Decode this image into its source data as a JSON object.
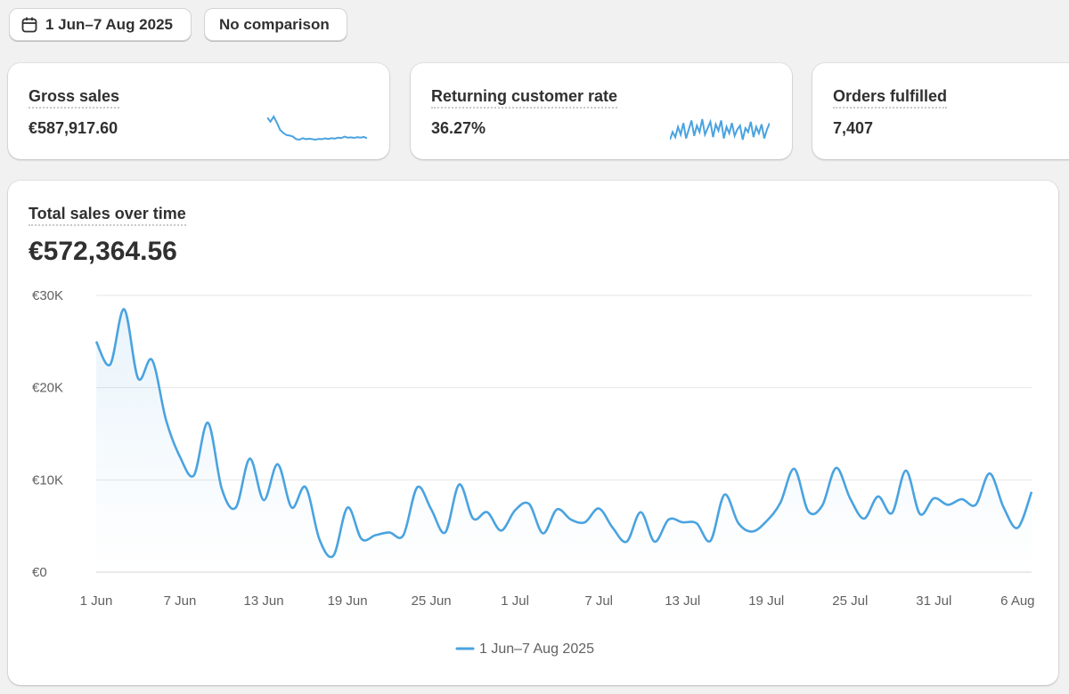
{
  "toolbar": {
    "date_range": "1 Jun–7 Aug 2025",
    "comparison": "No comparison"
  },
  "metrics": [
    {
      "title": "Gross sales",
      "value": "€587,917.60",
      "sparkline": {
        "color": "#4aa3e0",
        "values": [
          26000,
          22000,
          27000,
          21000,
          14000,
          11000,
          9000,
          8500,
          7500,
          5000,
          4500,
          6000,
          5000,
          5500,
          5000,
          4500,
          5200,
          5000,
          5800,
          5200,
          6000,
          5500,
          6500,
          6000,
          7500,
          6500,
          6800,
          6200,
          7000,
          6500,
          7200,
          6000
        ]
      }
    },
    {
      "title": "Returning customer rate",
      "value": "36.27%",
      "sparkline": {
        "color": "#4aa3e0",
        "values": [
          30,
          36,
          32,
          40,
          34,
          43,
          31,
          38,
          45,
          33,
          41,
          36,
          46,
          34,
          39,
          44,
          32,
          42,
          37,
          45,
          31,
          40,
          35,
          43,
          33,
          38,
          41,
          30,
          39,
          36,
          44,
          32,
          40,
          35,
          42,
          31,
          38,
          43
        ]
      }
    },
    {
      "title": "Orders fulfilled",
      "value": "7,407"
    }
  ],
  "chart_data": {
    "type": "line",
    "title": "Total sales over time",
    "total": "€572,364.56",
    "categories": [
      "1 Jun",
      null,
      null,
      null,
      null,
      null,
      "7 Jun",
      null,
      null,
      null,
      null,
      null,
      "13 Jun",
      null,
      null,
      null,
      null,
      null,
      "19 Jun",
      null,
      null,
      null,
      null,
      null,
      "25 Jun",
      null,
      null,
      null,
      null,
      null,
      "1 Jul",
      null,
      null,
      null,
      null,
      null,
      "7 Jul",
      null,
      null,
      null,
      null,
      null,
      "13 Jul",
      null,
      null,
      null,
      null,
      null,
      "19 Jul",
      null,
      null,
      null,
      null,
      null,
      "25 Jul",
      null,
      null,
      null,
      null,
      null,
      "31 Jul",
      null,
      null,
      null,
      null,
      null,
      "6 Aug",
      null
    ],
    "series": [
      {
        "name": "1 Jun–7 Aug 2025",
        "color": "#4aa3e0",
        "values": [
          25000,
          22500,
          28500,
          21000,
          23000,
          16500,
          12500,
          10500,
          16200,
          9000,
          7000,
          12300,
          7800,
          11700,
          7000,
          9200,
          3500,
          1800,
          7000,
          3600,
          4000,
          4300,
          4000,
          9200,
          6800,
          4300,
          9500,
          5800,
          6500,
          4500,
          6700,
          7400,
          4200,
          6800,
          5700,
          5400,
          6900,
          4800,
          3300,
          6500,
          3300,
          5700,
          5400,
          5300,
          3400,
          8400,
          5300,
          4400,
          5500,
          7500,
          11200,
          6600,
          7200,
          11300,
          8000,
          5800,
          8200,
          6400,
          11000,
          6300,
          8000,
          7300,
          7900,
          7300,
          10700,
          7000,
          4800,
          8700
        ]
      }
    ],
    "ylim": [
      0,
      30000
    ],
    "yticks": [
      {
        "value": 0,
        "label": "€0"
      },
      {
        "value": 10000,
        "label": "€10K"
      },
      {
        "value": 20000,
        "label": "€20K"
      },
      {
        "value": 30000,
        "label": "€30K"
      }
    ],
    "grid": true,
    "legend": "bottom"
  }
}
